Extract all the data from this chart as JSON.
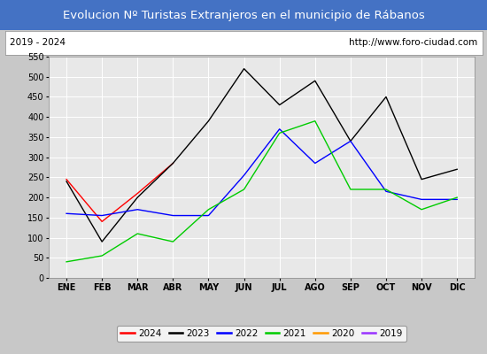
{
  "title": "Evolucion Nº Turistas Extranjeros en el municipio de Rábanos",
  "subtitle_left": "2019 - 2024",
  "subtitle_right": "http://www.foro-ciudad.com",
  "months": [
    "ENE",
    "FEB",
    "MAR",
    "ABR",
    "MAY",
    "JUN",
    "JUL",
    "AGO",
    "SEP",
    "OCT",
    "NOV",
    "DIC"
  ],
  "ylim": [
    0,
    550
  ],
  "yticks": [
    0,
    50,
    100,
    150,
    200,
    250,
    300,
    350,
    400,
    450,
    500,
    550
  ],
  "series": {
    "2024": {
      "color": "#ff0000",
      "data": [
        245,
        140,
        210,
        285,
        null,
        null,
        null,
        null,
        null,
        null,
        null,
        null
      ]
    },
    "2023": {
      "color": "#000000",
      "data": [
        240,
        90,
        200,
        285,
        390,
        520,
        430,
        490,
        340,
        450,
        245,
        270
      ]
    },
    "2022": {
      "color": "#0000ff",
      "data": [
        160,
        155,
        170,
        155,
        155,
        255,
        370,
        285,
        340,
        215,
        195,
        195
      ]
    },
    "2021": {
      "color": "#00cc00",
      "data": [
        40,
        55,
        110,
        90,
        170,
        220,
        360,
        390,
        220,
        220,
        170,
        200
      ]
    },
    "2020": {
      "color": "#ff9900",
      "data": [
        null,
        null,
        null,
        null,
        null,
        null,
        null,
        null,
        null,
        null,
        null,
        null
      ]
    },
    "2019": {
      "color": "#9933ff",
      "data": [
        null,
        null,
        null,
        null,
        null,
        null,
        null,
        null,
        null,
        null,
        null,
        null
      ]
    }
  },
  "legend_order": [
    "2024",
    "2023",
    "2022",
    "2021",
    "2020",
    "2019"
  ],
  "title_bg_color": "#4472c4",
  "title_text_color": "#ffffff",
  "plot_bg_color": "#e8e8e8",
  "grid_color": "#ffffff",
  "subtitle_box_color": "#ffffff",
  "fig_bg_color": "#c8c8c8",
  "title_fontsize": 9.5,
  "subtitle_fontsize": 7.5,
  "tick_fontsize": 7,
  "legend_fontsize": 7.5
}
